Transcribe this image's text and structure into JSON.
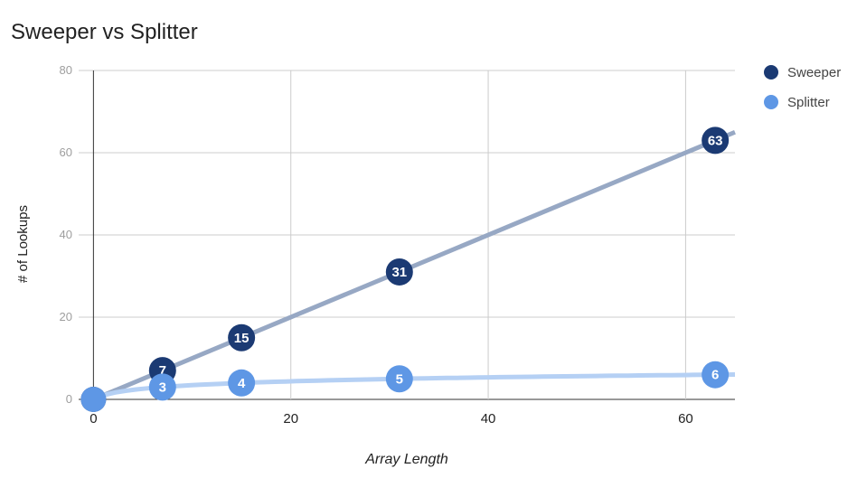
{
  "chart_data": {
    "type": "scatter",
    "title": "Sweeper vs Splitter",
    "xlabel": "Array Length",
    "ylabel": "# of Lookups",
    "xlim": [
      -1.5,
      65
    ],
    "ylim": [
      0,
      80
    ],
    "x_ticks": [
      0,
      20,
      40,
      60
    ],
    "y_ticks": [
      0,
      20,
      40,
      60,
      80
    ],
    "grid": true,
    "legend_position": "top-right",
    "trendline": true,
    "series": [
      {
        "name": "Sweeper",
        "color": "#1b3a73",
        "trend_color": "#97a8c4",
        "points": [
          {
            "x": 0,
            "y": 0,
            "label": ""
          },
          {
            "x": 7,
            "y": 7,
            "label": "7"
          },
          {
            "x": 15,
            "y": 15,
            "label": "15"
          },
          {
            "x": 31,
            "y": 31,
            "label": "31"
          },
          {
            "x": 63,
            "y": 63,
            "label": "63"
          }
        ]
      },
      {
        "name": "Splitter",
        "color": "#5e97e5",
        "trend_color": "#b5d0f4",
        "points": [
          {
            "x": 0,
            "y": 0,
            "label": ""
          },
          {
            "x": 7,
            "y": 3,
            "label": "3"
          },
          {
            "x": 15,
            "y": 4,
            "label": "4"
          },
          {
            "x": 31,
            "y": 5,
            "label": "5"
          },
          {
            "x": 63,
            "y": 6,
            "label": "6"
          }
        ]
      }
    ]
  }
}
